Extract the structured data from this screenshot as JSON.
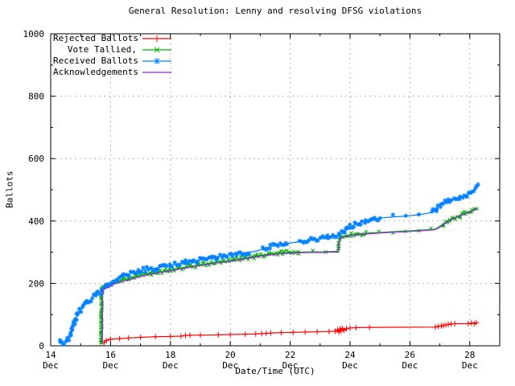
{
  "chart_data": {
    "type": "line",
    "title": "General Resolution: Lenny and resolving DFSG violations",
    "xlabel": "Date/Time (UTC)",
    "ylabel": "Ballots",
    "legend_position": "inside-top-left",
    "grid": true,
    "grid_color": "#b4b4b4",
    "border_color": "#000000",
    "x_axis": {
      "unit": "day of December (UTC)",
      "range": [
        14,
        29
      ],
      "major_ticks": [
        14,
        16,
        18,
        20,
        22,
        24,
        26,
        28
      ],
      "minor_ticks": [
        15,
        17,
        19,
        21,
        23,
        25,
        27
      ],
      "month_label": "Dec"
    },
    "y_axis": {
      "range": [
        0,
        1000
      ],
      "major_ticks": [
        0,
        200,
        400,
        600,
        800,
        1000
      ],
      "minor_ticks": [
        100,
        300,
        500,
        700,
        900
      ]
    },
    "series": [
      {
        "name": "Rejected Ballots",
        "color": "#ff0000",
        "marker": "plus",
        "marker_mode": "points",
        "points": [
          [
            15.78,
            10
          ],
          [
            15.86,
            17
          ],
          [
            16.0,
            21
          ],
          [
            16.3,
            23
          ],
          [
            16.6,
            25
          ],
          [
            17.0,
            27
          ],
          [
            17.5,
            29
          ],
          [
            18.0,
            30
          ],
          [
            18.35,
            31
          ],
          [
            18.5,
            33
          ],
          [
            18.65,
            34
          ],
          [
            19.0,
            34
          ],
          [
            19.6,
            35
          ],
          [
            20.0,
            36
          ],
          [
            20.5,
            37
          ],
          [
            20.85,
            38
          ],
          [
            21.05,
            39
          ],
          [
            21.2,
            40
          ],
          [
            21.35,
            41
          ],
          [
            21.7,
            42
          ],
          [
            22.1,
            43
          ],
          [
            22.5,
            44
          ],
          [
            22.9,
            45
          ],
          [
            23.3,
            46
          ],
          [
            23.5,
            47
          ],
          [
            23.58,
            51
          ],
          [
            23.62,
            44
          ],
          [
            23.66,
            54
          ],
          [
            23.7,
            47
          ],
          [
            23.74,
            56
          ],
          [
            23.8,
            50
          ],
          [
            23.88,
            55
          ],
          [
            24.0,
            57
          ],
          [
            24.2,
            58
          ],
          [
            24.65,
            59
          ],
          [
            26.85,
            60
          ],
          [
            26.95,
            62
          ],
          [
            27.05,
            64
          ],
          [
            27.12,
            65
          ],
          [
            27.2,
            67
          ],
          [
            27.28,
            68
          ],
          [
            27.38,
            70
          ],
          [
            27.5,
            71
          ],
          [
            27.95,
            71
          ],
          [
            28.05,
            73
          ],
          [
            28.15,
            71
          ],
          [
            28.22,
            74
          ]
        ]
      },
      {
        "name": "Vote Tallied,",
        "color": "#00b000",
        "marker": "cross",
        "marker_mode": "dense",
        "sparse_ranges": [
          [
            22.3,
            23.58
          ],
          [
            24.55,
            26.8
          ]
        ],
        "points": [
          [
            15.68,
            4
          ],
          [
            15.69,
            60
          ],
          [
            15.7,
            120
          ],
          [
            15.71,
            185
          ],
          [
            15.9,
            192
          ],
          [
            16.1,
            201
          ],
          [
            16.4,
            210
          ],
          [
            16.7,
            218
          ],
          [
            17.0,
            226
          ],
          [
            17.3,
            232
          ],
          [
            17.6,
            237
          ],
          [
            18.0,
            243
          ],
          [
            18.4,
            250
          ],
          [
            18.8,
            257
          ],
          [
            19.2,
            263
          ],
          [
            19.6,
            269
          ],
          [
            20.0,
            274
          ],
          [
            20.4,
            280
          ],
          [
            20.7,
            285
          ],
          [
            21.0,
            290
          ],
          [
            21.3,
            294
          ],
          [
            21.6,
            297
          ],
          [
            21.9,
            299
          ],
          [
            22.2,
            300
          ],
          [
            22.6,
            301
          ],
          [
            23.0,
            301
          ],
          [
            23.3,
            302
          ],
          [
            23.6,
            303
          ],
          [
            23.63,
            330
          ],
          [
            23.66,
            347
          ],
          [
            23.8,
            352
          ],
          [
            24.0,
            356
          ],
          [
            24.3,
            359
          ],
          [
            24.7,
            362
          ],
          [
            25.1,
            364
          ],
          [
            25.5,
            366
          ],
          [
            25.9,
            368
          ],
          [
            26.3,
            370
          ],
          [
            26.6,
            372
          ],
          [
            26.85,
            374
          ],
          [
            27.0,
            383
          ],
          [
            27.15,
            394
          ],
          [
            27.35,
            405
          ],
          [
            27.55,
            413
          ],
          [
            27.75,
            421
          ],
          [
            27.95,
            429
          ],
          [
            28.1,
            435
          ],
          [
            28.25,
            442
          ]
        ]
      },
      {
        "name": "Received Ballots",
        "color": "#0080ff",
        "marker": "star",
        "marker_mode": "dense",
        "sparse_ranges": [
          [
            20.62,
            21.0
          ],
          [
            21.85,
            22.2
          ],
          [
            25.0,
            26.55
          ]
        ],
        "points": [
          [
            14.28,
            8
          ],
          [
            14.33,
            16
          ],
          [
            14.38,
            9
          ],
          [
            14.45,
            12
          ],
          [
            14.55,
            16
          ],
          [
            14.63,
            25
          ],
          [
            14.7,
            45
          ],
          [
            14.78,
            70
          ],
          [
            14.85,
            90
          ],
          [
            14.95,
            108
          ],
          [
            15.05,
            122
          ],
          [
            15.15,
            133
          ],
          [
            15.3,
            146
          ],
          [
            15.45,
            158
          ],
          [
            15.6,
            168
          ],
          [
            15.75,
            180
          ],
          [
            15.9,
            192
          ],
          [
            16.05,
            204
          ],
          [
            16.2,
            213
          ],
          [
            16.4,
            221
          ],
          [
            16.6,
            228
          ],
          [
            16.8,
            235
          ],
          [
            17.0,
            241
          ],
          [
            17.3,
            246
          ],
          [
            17.6,
            251
          ],
          [
            17.9,
            256
          ],
          [
            18.2,
            261
          ],
          [
            18.5,
            267
          ],
          [
            18.8,
            272
          ],
          [
            19.1,
            277
          ],
          [
            19.4,
            282
          ],
          [
            19.7,
            287
          ],
          [
            20.0,
            292
          ],
          [
            20.3,
            296
          ],
          [
            20.6,
            300
          ],
          [
            20.9,
            304
          ],
          [
            21.1,
            310
          ],
          [
            21.3,
            316
          ],
          [
            21.5,
            321
          ],
          [
            21.7,
            325
          ],
          [
            21.9,
            328
          ],
          [
            22.1,
            331
          ],
          [
            22.4,
            334
          ],
          [
            22.7,
            338
          ],
          [
            23.0,
            343
          ],
          [
            23.2,
            348
          ],
          [
            23.4,
            352
          ],
          [
            23.6,
            356
          ],
          [
            23.75,
            361
          ],
          [
            23.9,
            372
          ],
          [
            24.05,
            383
          ],
          [
            24.2,
            391
          ],
          [
            24.4,
            397
          ],
          [
            24.6,
            402
          ],
          [
            24.8,
            406
          ],
          [
            25.0,
            409
          ],
          [
            25.3,
            412
          ],
          [
            25.6,
            414
          ],
          [
            25.9,
            416
          ],
          [
            26.2,
            419
          ],
          [
            26.5,
            423
          ],
          [
            26.7,
            427
          ],
          [
            26.85,
            434
          ],
          [
            26.95,
            447
          ],
          [
            27.05,
            456
          ],
          [
            27.2,
            463
          ],
          [
            27.4,
            468
          ],
          [
            27.6,
            473
          ],
          [
            27.8,
            480
          ],
          [
            27.95,
            488
          ],
          [
            28.1,
            498
          ],
          [
            28.2,
            505
          ],
          [
            28.3,
            513
          ]
        ]
      },
      {
        "name": "Acknowledgements",
        "color": "#a020f0",
        "marker": "none",
        "marker_mode": "none",
        "points": [
          [
            15.73,
            8
          ],
          [
            15.735,
            100
          ],
          [
            15.74,
            178
          ],
          [
            15.9,
            188
          ],
          [
            16.1,
            197
          ],
          [
            16.4,
            206
          ],
          [
            16.7,
            214
          ],
          [
            17.0,
            222
          ],
          [
            17.3,
            228
          ],
          [
            17.6,
            234
          ],
          [
            18.0,
            240
          ],
          [
            18.4,
            247
          ],
          [
            18.8,
            254
          ],
          [
            19.2,
            260
          ],
          [
            19.6,
            266
          ],
          [
            20.0,
            271
          ],
          [
            20.4,
            277
          ],
          [
            20.7,
            282
          ],
          [
            21.0,
            287
          ],
          [
            21.3,
            291
          ],
          [
            21.6,
            294
          ],
          [
            21.9,
            296
          ],
          [
            22.2,
            298
          ],
          [
            22.6,
            299
          ],
          [
            23.0,
            299
          ],
          [
            23.3,
            300
          ],
          [
            23.6,
            300
          ],
          [
            23.63,
            328
          ],
          [
            23.66,
            344
          ],
          [
            23.8,
            350
          ],
          [
            24.0,
            353
          ],
          [
            24.3,
            356
          ],
          [
            24.7,
            359
          ],
          [
            25.1,
            362
          ],
          [
            25.5,
            364
          ],
          [
            25.9,
            366
          ],
          [
            26.3,
            368
          ],
          [
            26.6,
            370
          ],
          [
            26.85,
            372
          ],
          [
            27.0,
            380
          ],
          [
            27.15,
            391
          ],
          [
            27.35,
            402
          ],
          [
            27.55,
            411
          ],
          [
            27.75,
            419
          ],
          [
            27.95,
            427
          ],
          [
            28.1,
            433
          ],
          [
            28.25,
            440
          ]
        ]
      }
    ]
  }
}
